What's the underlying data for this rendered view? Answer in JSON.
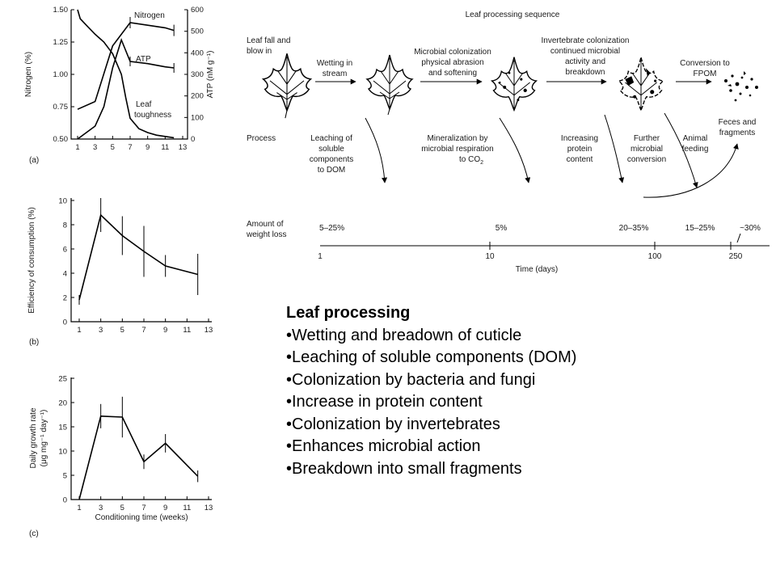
{
  "panel_a": {
    "tag": "(a)",
    "left_ticks": [
      "1.50",
      "1.25",
      "1.00",
      "0.75",
      "0.50"
    ],
    "right_ticks": [
      "600",
      "500",
      "400",
      "300",
      "200",
      "100",
      "0"
    ],
    "x_ticks": [
      "1",
      "3",
      "5",
      "7",
      "9",
      "11",
      "13"
    ],
    "ylabel_left": "Nitrogen (%)",
    "ylabel_right": "ATP (nM g⁻¹)",
    "curve_labels": {
      "nitrogen": "Nitrogen",
      "atp": "ATP",
      "toughness_1": "Leaf",
      "toughness_2": "toughness"
    }
  },
  "panel_b": {
    "tag": "(b)",
    "y_ticks": [
      "10",
      "8",
      "6",
      "4",
      "2",
      "0"
    ],
    "x_ticks": [
      "1",
      "3",
      "5",
      "7",
      "9",
      "11",
      "13"
    ],
    "ylabel": "Efficiency of consumption (%)"
  },
  "panel_c": {
    "tag": "(c)",
    "y_ticks": [
      "25",
      "20",
      "15",
      "10",
      "5",
      "0"
    ],
    "x_ticks": [
      "1",
      "3",
      "5",
      "7",
      "9",
      "11",
      "13"
    ],
    "ylabel_1": "Daily growth rate",
    "ylabel_2": "(μg mg⁻¹ day⁻¹)",
    "xlabel": "Conditioning time (weeks)"
  },
  "chart_data": [
    {
      "type": "line",
      "xlim": [
        1,
        13
      ],
      "series": [
        {
          "name": "Nitrogen",
          "axis": "left",
          "ylim": [
            0.5,
            1.5
          ],
          "x": [
            1,
            3,
            5,
            7,
            9,
            11,
            12
          ],
          "y": [
            0.73,
            0.79,
            1.22,
            1.4,
            1.38,
            1.36,
            1.34
          ]
        },
        {
          "name": "ATP",
          "axis": "right",
          "ylim": [
            0,
            600
          ],
          "x": [
            1,
            3,
            4,
            5,
            6,
            7,
            9,
            11,
            12
          ],
          "y": [
            0,
            60,
            150,
            330,
            460,
            360,
            350,
            335,
            330
          ]
        },
        {
          "name": "Leaf toughness",
          "axis": "left",
          "ylim": [
            0.5,
            1.5
          ],
          "x": [
            1,
            1.3,
            2,
            3,
            4,
            5,
            6,
            6.5,
            7,
            8,
            9,
            10,
            11,
            12
          ],
          "y": [
            1.5,
            1.43,
            1.38,
            1.31,
            1.25,
            1.16,
            1.0,
            0.82,
            0.66,
            0.58,
            0.55,
            0.53,
            0.52,
            0.51
          ]
        }
      ]
    },
    {
      "type": "line",
      "xlim": [
        1,
        13
      ],
      "ylim": [
        0,
        10
      ],
      "ylabel": "Efficiency of consumption (%)",
      "x": [
        1,
        3,
        5,
        7,
        9,
        12
      ],
      "y": [
        1.8,
        8.8,
        7.1,
        5.8,
        4.6,
        3.9
      ],
      "err": [
        0.4,
        1.4,
        1.6,
        2.1,
        0.9,
        1.7
      ]
    },
    {
      "type": "line",
      "xlim": [
        1,
        13
      ],
      "ylim": [
        0,
        25
      ],
      "ylabel": "Daily growth rate (μg mg⁻¹ day⁻¹)",
      "xlabel": "Conditioning time (weeks)",
      "x": [
        1,
        3,
        5,
        7,
        9,
        12
      ],
      "y": [
        0,
        17.2,
        17.0,
        7.8,
        11.6,
        4.8
      ],
      "err": [
        0,
        2.5,
        4.2,
        1.5,
        1.9,
        1.2
      ]
    }
  ],
  "sequence": {
    "title": "Leaf processing sequence",
    "stages": [
      [
        "Leaf fall and",
        "blow in"
      ],
      [
        "Wetting in",
        "stream"
      ],
      [
        "Microbial colonization",
        "physical abrasion",
        "and softening"
      ],
      [
        "Invertebrate colonization",
        "continued microbial",
        "activity and",
        "breakdown"
      ],
      [
        "Conversion to",
        "FPOM"
      ]
    ],
    "process_label": "Process",
    "processes": [
      [
        "Leaching of",
        "soluble",
        "components",
        "to DOM"
      ],
      [
        "Mineralization by",
        "microbial respiration",
        "to CO"
      ],
      [
        "Increasing",
        "protein",
        "content"
      ],
      [
        "Further",
        "microbial",
        "conversion"
      ],
      [
        "Animal",
        "feeding"
      ],
      [
        "Feces and",
        "fragments"
      ]
    ],
    "co2_sub": "2",
    "weight_label": [
      "Amount of",
      "weight loss"
    ],
    "weight_values": [
      "5–25%",
      "5%",
      "20–35%",
      "15–25%",
      "~30%"
    ],
    "time_ticks": [
      "1",
      "10",
      "100",
      "250"
    ],
    "time_label": "Time (days)"
  },
  "bullets": {
    "heading": "Leaf processing",
    "items": [
      "•Wetting and breadown of cuticle",
      "•Leaching of soluble components (DOM)",
      "•Colonization by bacteria and fungi",
      "•Increase in protein content",
      "•Colonization by invertebrates",
      "•Enhances microbial action",
      "•Breakdown into small fragments"
    ]
  }
}
